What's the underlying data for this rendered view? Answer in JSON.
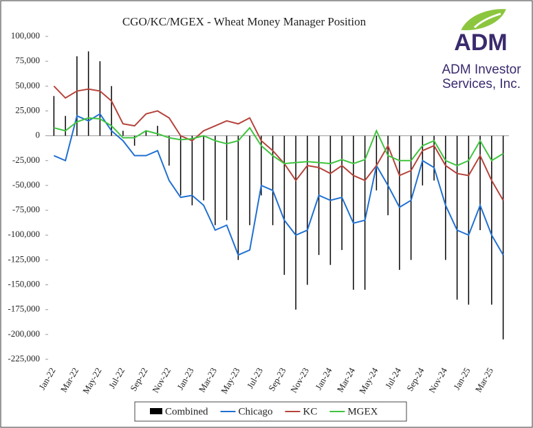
{
  "chart_data": {
    "type": "bar-line",
    "title": "CGO/KC/MGEX - Wheat Money Manager Position",
    "categories": [
      "Jan-22",
      null,
      "Mar-22",
      null,
      "May-22",
      null,
      "Jul-22",
      null,
      "Sep-22",
      null,
      "Nov-22",
      null,
      "Jan-23",
      null,
      "Mar-23",
      null,
      "May-23",
      null,
      "Jul-23",
      null,
      "Sep-23",
      null,
      "Nov-23",
      null,
      "Jan-24",
      null,
      "Mar-24",
      null,
      "May-24",
      null,
      "Jul-24",
      null,
      "Sep-24",
      null,
      "Nov-24",
      null,
      "Jan-25",
      null,
      "Mar-25",
      null
    ],
    "series": [
      {
        "name": "Combined",
        "color": "#000000",
        "kind": "bar",
        "values": [
          40000,
          20000,
          80000,
          85000,
          75000,
          50000,
          5000,
          -10000,
          5000,
          10000,
          -30000,
          -60000,
          -70000,
          -65000,
          -90000,
          -85000,
          -125000,
          -90000,
          -60000,
          -90000,
          -140000,
          -175000,
          -150000,
          -120000,
          -130000,
          -115000,
          -155000,
          -155000,
          -55000,
          -80000,
          -135000,
          -125000,
          -50000,
          -45000,
          -125000,
          -165000,
          -170000,
          -95000,
          -170000,
          -205000
        ]
      },
      {
        "name": "Chicago",
        "color": "#1f6fd1",
        "kind": "line",
        "values": [
          -20000,
          -25000,
          20000,
          15000,
          22000,
          5000,
          -5000,
          -20000,
          -20000,
          -15000,
          -45000,
          -62000,
          -60000,
          -70000,
          -95000,
          -90000,
          -120000,
          -115000,
          -50000,
          -55000,
          -85000,
          -100000,
          -95000,
          -60000,
          -65000,
          -62000,
          -88000,
          -85000,
          -30000,
          -50000,
          -72000,
          -65000,
          -25000,
          -32000,
          -70000,
          -95000,
          -100000,
          -70000,
          -100000,
          -120000
        ]
      },
      {
        "name": "KC",
        "color": "#b5433b",
        "kind": "line",
        "values": [
          50000,
          38000,
          45000,
          47000,
          45000,
          35000,
          12000,
          10000,
          22000,
          25000,
          18000,
          0,
          -5000,
          5000,
          10000,
          15000,
          12000,
          18000,
          -5000,
          -15000,
          -28000,
          -45000,
          -30000,
          -32000,
          -38000,
          -30000,
          -40000,
          -45000,
          -30000,
          -10000,
          -40000,
          -35000,
          -15000,
          -10000,
          -30000,
          -38000,
          -40000,
          -20000,
          -45000,
          -65000
        ]
      },
      {
        "name": "MGEX",
        "color": "#3ec43e",
        "kind": "line",
        "values": [
          8000,
          5000,
          14000,
          18000,
          17000,
          10000,
          -2000,
          -2000,
          5000,
          2000,
          -2000,
          -4000,
          -3000,
          0,
          -5000,
          -8000,
          -5000,
          8000,
          -10000,
          -20000,
          -28000,
          -27000,
          -26000,
          -27000,
          -28000,
          -24000,
          -28000,
          -24000,
          5000,
          -20000,
          -25000,
          -25000,
          -10000,
          -5000,
          -25000,
          -30000,
          -25000,
          -5000,
          -25000,
          -18000
        ]
      }
    ],
    "ylim": [
      -225000,
      100000
    ],
    "yticks": [
      {
        "value": 100000,
        "label": "100,000"
      },
      {
        "value": 75000,
        "label": "75,000"
      },
      {
        "value": 50000,
        "label": "50,000"
      },
      {
        "value": 25000,
        "label": "25,000"
      },
      0,
      {
        "value": -25000,
        "label": "-25,000"
      },
      {
        "value": -50000,
        "label": "-50,000"
      },
      {
        "value": -75000,
        "label": "-75,000"
      },
      {
        "value": -100000,
        "label": "-100,000"
      },
      {
        "value": -125000,
        "label": "-125,000"
      },
      {
        "value": -150000,
        "label": "-150,000"
      },
      {
        "value": -175000,
        "label": "-175,000"
      },
      {
        "value": -200000,
        "label": "-200,000"
      },
      {
        "value": -225000,
        "label": "-225,000"
      }
    ],
    "legend": "bottom"
  },
  "logo": {
    "mark": "ADM",
    "line1": "ADM Investor",
    "line2": "Services, Inc."
  }
}
